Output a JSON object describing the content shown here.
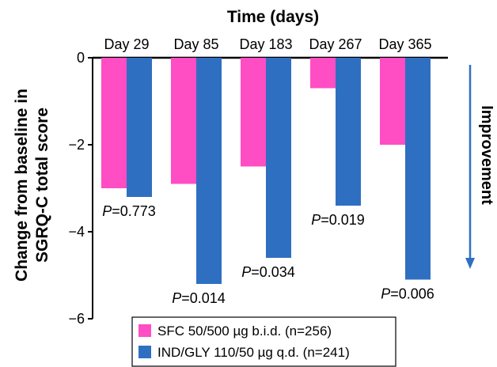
{
  "chart_data": {
    "type": "bar",
    "title": "Time (days)",
    "ylabel_lines": [
      "Change from baseline in",
      "SGRQ-C total score"
    ],
    "categories": [
      "Day 29",
      "Day 85",
      "Day 183",
      "Day 267",
      "Day 365"
    ],
    "series": [
      {
        "name": "SFC 50/500 µg b.i.d. (n=256)",
        "color": "#ff4dc4",
        "values": [
          -3.0,
          -2.9,
          -2.5,
          -0.7,
          -2.0
        ]
      },
      {
        "name": "IND/GLY 110/50 µg q.d. (n=241)",
        "color": "#2f6fc2",
        "values": [
          -3.2,
          -5.2,
          -4.6,
          -3.4,
          -5.1
        ]
      }
    ],
    "p_values": [
      {
        "prefix": "P",
        "value": "=0.773"
      },
      {
        "prefix": "P",
        "value": "=0.014"
      },
      {
        "prefix": "P",
        "value": "=0.034"
      },
      {
        "prefix": "P",
        "value": "=0.019"
      },
      {
        "prefix": "P",
        "value": "=0.006"
      }
    ],
    "ylim": [
      -6,
      0
    ],
    "yticks": [
      0,
      -2,
      -4,
      -6
    ],
    "ytick_labels": [
      "0",
      "−2",
      "−4",
      "−6"
    ],
    "annotation": "Improvement",
    "arrow_color": "#2f6fc2",
    "legend_position": "bottom"
  }
}
